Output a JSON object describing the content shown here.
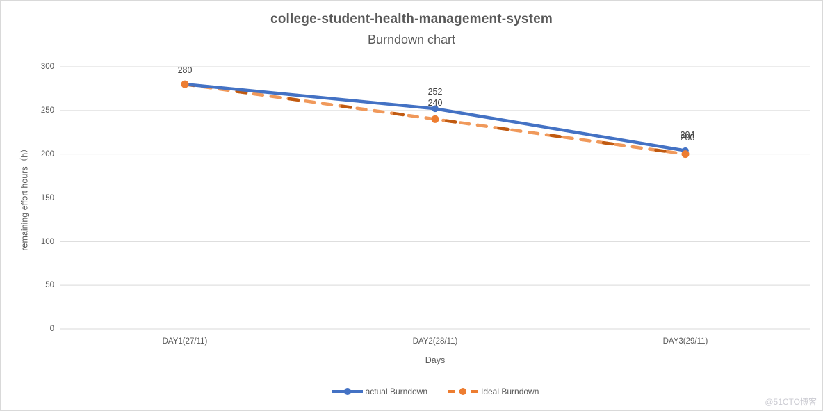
{
  "title": "college-student-health-management-system",
  "subtitle": "Burndown chart",
  "watermark": "@51CTO博客",
  "colors": {
    "actual": "#4472C4",
    "ideal": "#ED7D31",
    "ideal_light": "#F0995B",
    "ideal_dark": "#C05A11",
    "grid": "#D9D9D9",
    "axis_text": "#595959",
    "title": "#595959",
    "data_label": "#404040",
    "watermark": "#CBCBD2",
    "border": "#D9D9D9"
  },
  "chart_data": {
    "type": "line",
    "title": "college-student-health-management-system",
    "subtitle": "Burndown chart",
    "categories": [
      "DAY1(27/11)",
      "DAY2(28/11)",
      "DAY3(29/11)"
    ],
    "series": [
      {
        "name": "actual Burndown",
        "values": [
          280,
          252,
          204
        ],
        "labels": [
          "280",
          "252",
          "204"
        ],
        "color": "#4472C4",
        "line_style": "solid",
        "marker": "circle"
      },
      {
        "name": "Ideal Burndown",
        "values": [
          280,
          240,
          200
        ],
        "labels": [
          "",
          "240",
          "200"
        ],
        "color": "#ED7D31",
        "line_style": "dashed",
        "marker": "circle"
      }
    ],
    "xlabel": "Days",
    "ylabel": "remaining effort hours（h）",
    "ylim": [
      0,
      300
    ],
    "ytick_step": 50,
    "yticks": [
      "300",
      "250",
      "200",
      "150",
      "100",
      "50",
      "0"
    ],
    "grid": true,
    "legend_position": "bottom"
  }
}
